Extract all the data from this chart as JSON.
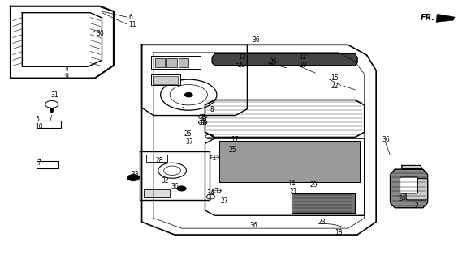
{
  "bg_color": "#ffffff",
  "line_color": "#000000",
  "fig_width": 5.8,
  "fig_height": 3.2,
  "dpi": 100
}
